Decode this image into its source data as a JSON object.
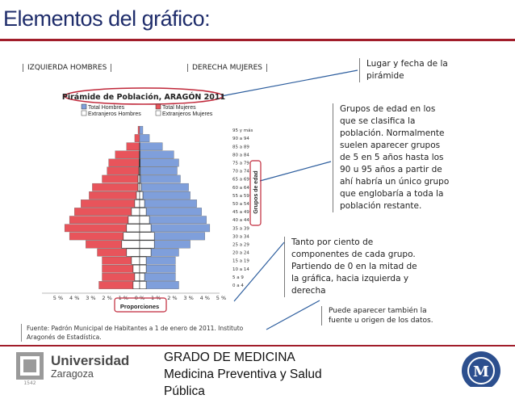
{
  "slide": {
    "title": "Elementos del gráfico:",
    "left_label": "IZQUIERDA HOMBRES",
    "right_label": "DERECHA MUJERES",
    "callout_date": "Lugar y fecha de la pirámide",
    "callout_groups": "Grupos de edad en los que se clasifica la población. Normalmente suelen aparecer grupos de 5 en 5 años hasta los 90 u 95 años a partir de ahí habría un único grupo que englobaría a toda la población restante.",
    "callout_percent": "Tanto por ciento de componentes de cada grupo. Partiendo de 0 en la mitad de la gráfica, hacia izquierda  y derecha",
    "callout_source": "Puede aparecer también la fuente u origen de los datos.",
    "source_text": "Fuente: Padrón Municipal de Habitantes a 1 de enero de 2011. Instituto Aragonés de Estadística.",
    "footer_line1": "GRADO DE MEDICINA",
    "footer_line2": "Medicina Preventiva y Salud",
    "footer_line3": "Pública",
    "uni_name_1": "Universidad",
    "uni_name_2": "Zaragoza",
    "uni_year": "1542"
  },
  "chart_data": {
    "type": "bar",
    "orientation": "horizontal",
    "title": "Pirámide de Población, ARAGÓN 2011",
    "xlabel": "Proporciones",
    "ylabel": "Grupos de edad",
    "xlim": [
      -5,
      5
    ],
    "x_tick_labels": [
      "5 %",
      "4 %",
      "3 %",
      "2 %",
      "1 %",
      "0 %",
      "1 %",
      "2 %",
      "3 %",
      "4 %",
      "5 %"
    ],
    "categories": [
      "0 a 4",
      "5 a 9",
      "10 a 14",
      "15 a 19",
      "20 a 24",
      "25 a 29",
      "30 a 34",
      "35 a 39",
      "40 a 44",
      "45 a 49",
      "50 a 54",
      "55 a 59",
      "60 a 64",
      "65 a 69",
      "70 a 74",
      "75 a 79",
      "80 a 84",
      "85 a 89",
      "90 a 94",
      "95 y más"
    ],
    "legend": [
      "Total Hombres",
      "Total Mujeres",
      "Extranjeros Hombres",
      "Extranjeros Mujeres"
    ],
    "series": [
      {
        "name": "Total Hombres",
        "side": "left",
        "color": "#e8545b",
        "values": [
          2.5,
          2.3,
          2.3,
          2.3,
          2.6,
          3.3,
          4.3,
          4.6,
          4.3,
          4.0,
          3.6,
          3.1,
          2.9,
          2.3,
          2.0,
          1.9,
          1.5,
          0.8,
          0.3,
          0.1
        ]
      },
      {
        "name": "Total Mujeres",
        "side": "right",
        "color": "#7f9fdb",
        "values": [
          2.4,
          2.2,
          2.2,
          2.2,
          2.4,
          3.1,
          4.0,
          4.3,
          4.1,
          3.8,
          3.5,
          3.1,
          3.0,
          2.5,
          2.3,
          2.4,
          2.1,
          1.4,
          0.6,
          0.2
        ]
      },
      {
        "name": "Extranjeros Hombres",
        "side": "left",
        "color": "#ffffff",
        "values": [
          0.4,
          0.3,
          0.4,
          0.5,
          0.8,
          1.1,
          1.0,
          0.8,
          0.7,
          0.5,
          0.3,
          0.2,
          0.1,
          0.1,
          0.05,
          0.03,
          0.02,
          0.01,
          0,
          0
        ]
      },
      {
        "name": "Extranjeros Mujeres",
        "side": "right",
        "color": "#ffffff",
        "values": [
          0.4,
          0.3,
          0.4,
          0.4,
          0.7,
          0.9,
          0.9,
          0.7,
          0.6,
          0.4,
          0.3,
          0.2,
          0.1,
          0.05,
          0.04,
          0.03,
          0.02,
          0.01,
          0,
          0
        ]
      }
    ]
  },
  "colors": {
    "title": "#1f2d6b",
    "rule": "#a11d2a",
    "chart_frame": "#c0283a"
  }
}
